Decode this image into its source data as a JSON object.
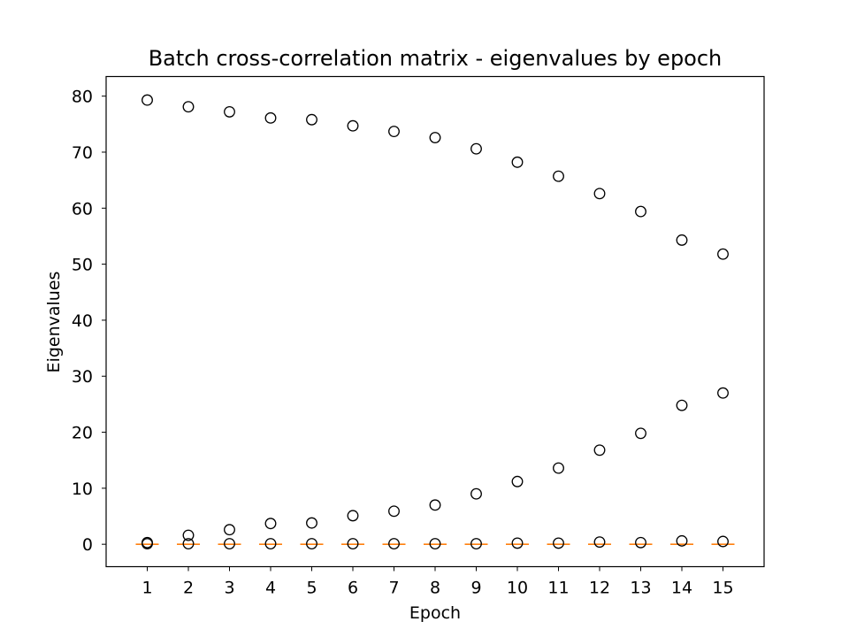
{
  "chart_data": {
    "type": "boxplot",
    "title": "Batch cross-correlation matrix - eigenvalues by epoch",
    "xlabel": "Epoch",
    "ylabel": "Eigenvalues",
    "categories": [
      "1",
      "2",
      "3",
      "4",
      "5",
      "6",
      "7",
      "8",
      "9",
      "10",
      "11",
      "12",
      "13",
      "14",
      "15"
    ],
    "ylim": [
      -4,
      83.5
    ],
    "yticks": [
      0,
      10,
      20,
      30,
      40,
      50,
      60,
      70,
      80
    ],
    "ytick_labels": [
      "0",
      "10",
      "20",
      "30",
      "40",
      "50",
      "60",
      "70",
      "80"
    ],
    "grid": false,
    "medians": [
      0,
      0,
      0,
      0,
      0,
      0,
      0,
      0,
      0,
      0,
      0,
      0,
      0,
      0,
      0
    ],
    "outliers": [
      [
        79.3,
        0.3,
        0.1
      ],
      [
        78.1,
        1.6,
        0.1
      ],
      [
        77.2,
        2.6,
        0.1
      ],
      [
        76.1,
        3.7,
        0.1
      ],
      [
        75.8,
        3.8,
        0.1
      ],
      [
        74.7,
        5.1,
        0.1
      ],
      [
        73.7,
        5.9,
        0.1
      ],
      [
        72.6,
        7.0,
        0.1
      ],
      [
        70.6,
        9.0,
        0.1
      ],
      [
        68.2,
        11.2,
        0.2
      ],
      [
        65.7,
        13.6,
        0.2
      ],
      [
        62.6,
        16.8,
        0.4
      ],
      [
        59.4,
        19.8,
        0.3
      ],
      [
        54.3,
        24.8,
        0.6
      ],
      [
        51.8,
        27.0,
        0.5
      ]
    ],
    "colors": {
      "median": "#ff7f0e",
      "marker_edge": "#000000",
      "axes": "#000000"
    }
  }
}
